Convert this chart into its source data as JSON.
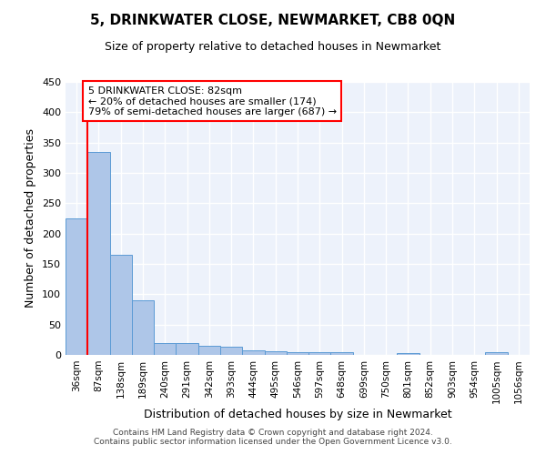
{
  "title": "5, DRINKWATER CLOSE, NEWMARKET, CB8 0QN",
  "subtitle": "Size of property relative to detached houses in Newmarket",
  "xlabel": "Distribution of detached houses by size in Newmarket",
  "ylabel": "Number of detached properties",
  "bar_color": "#aec6e8",
  "bar_edge_color": "#5b9bd5",
  "categories": [
    "36sqm",
    "87sqm",
    "138sqm",
    "189sqm",
    "240sqm",
    "291sqm",
    "342sqm",
    "393sqm",
    "444sqm",
    "495sqm",
    "546sqm",
    "597sqm",
    "648sqm",
    "699sqm",
    "750sqm",
    "801sqm",
    "852sqm",
    "903sqm",
    "954sqm",
    "1005sqm",
    "1056sqm"
  ],
  "values": [
    225,
    335,
    165,
    90,
    20,
    20,
    15,
    14,
    7,
    6,
    5,
    5,
    4,
    0,
    0,
    3,
    0,
    0,
    0,
    4,
    0
  ],
  "ylim": [
    0,
    450
  ],
  "yticks": [
    0,
    50,
    100,
    150,
    200,
    250,
    300,
    350,
    400,
    450
  ],
  "annotation_text": "5 DRINKWATER CLOSE: 82sqm\n← 20% of detached houses are smaller (174)\n79% of semi-detached houses are larger (687) →",
  "annotation_box_color": "white",
  "annotation_box_edge_color": "red",
  "redline_x": 0.5,
  "background_color": "#edf2fb",
  "grid_color": "white",
  "footnote": "Contains HM Land Registry data © Crown copyright and database right 2024.\nContains public sector information licensed under the Open Government Licence v3.0."
}
